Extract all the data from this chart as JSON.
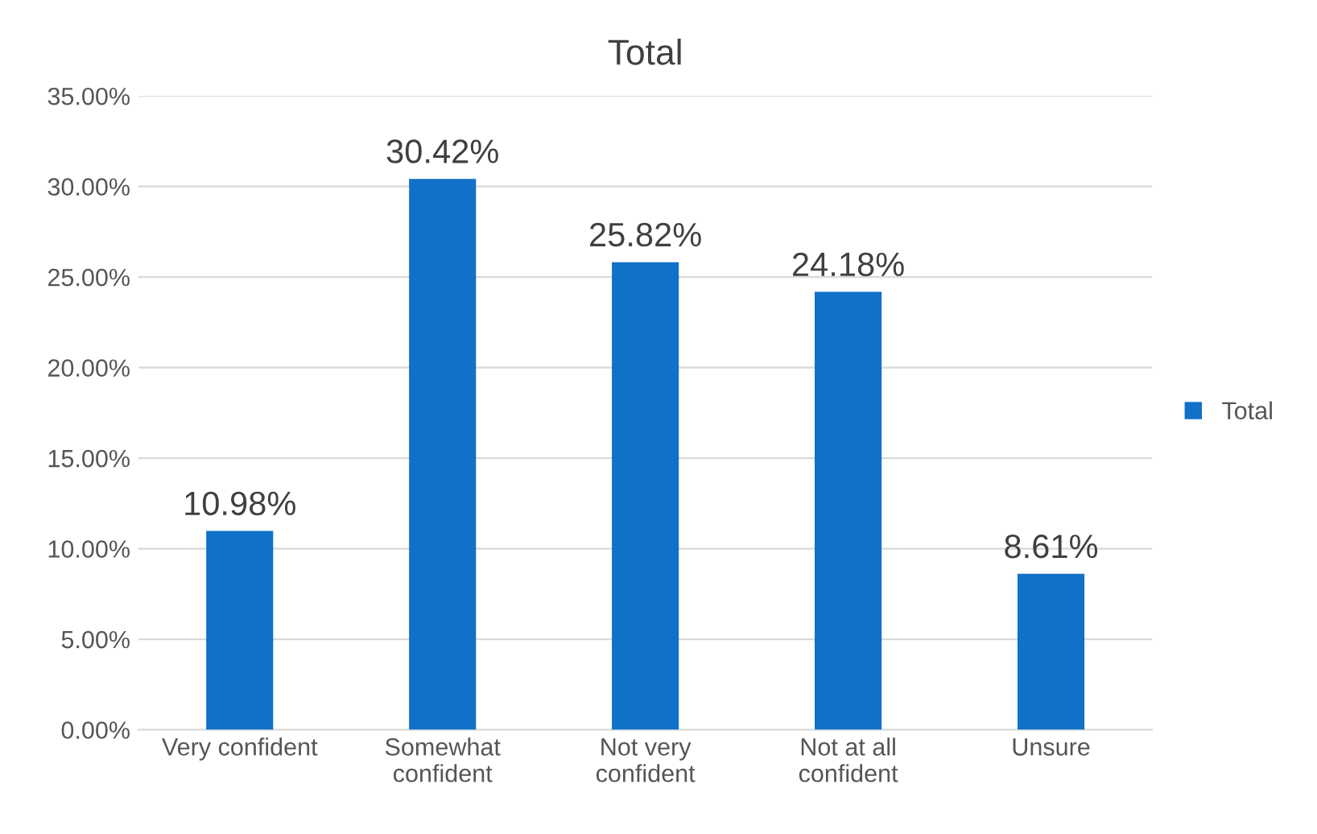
{
  "chart_data": {
    "type": "bar",
    "title": "Total",
    "categories": [
      "Very confident",
      "Somewhat\nconfident",
      "Not very\nconfident",
      "Not at all\nconfident",
      "Unsure"
    ],
    "series": [
      {
        "name": "Total",
        "color": "#1170c8",
        "values": [
          10.98,
          30.42,
          25.82,
          24.18,
          8.61
        ],
        "value_labels": [
          "10.98%",
          "30.42%",
          "25.82%",
          "24.18%",
          "8.61%"
        ]
      }
    ],
    "ylim": [
      0,
      35
    ],
    "yticks": [
      {
        "value": 0,
        "label": "0.00%"
      },
      {
        "value": 5,
        "label": "5.00%"
      },
      {
        "value": 10,
        "label": "10.00%"
      },
      {
        "value": 15,
        "label": "15.00%"
      },
      {
        "value": 20,
        "label": "20.00%"
      },
      {
        "value": 25,
        "label": "25.00%"
      },
      {
        "value": 30,
        "label": "30.00%"
      },
      {
        "value": 35,
        "label": "35.00%"
      }
    ],
    "grid": "y",
    "legend": "right"
  }
}
